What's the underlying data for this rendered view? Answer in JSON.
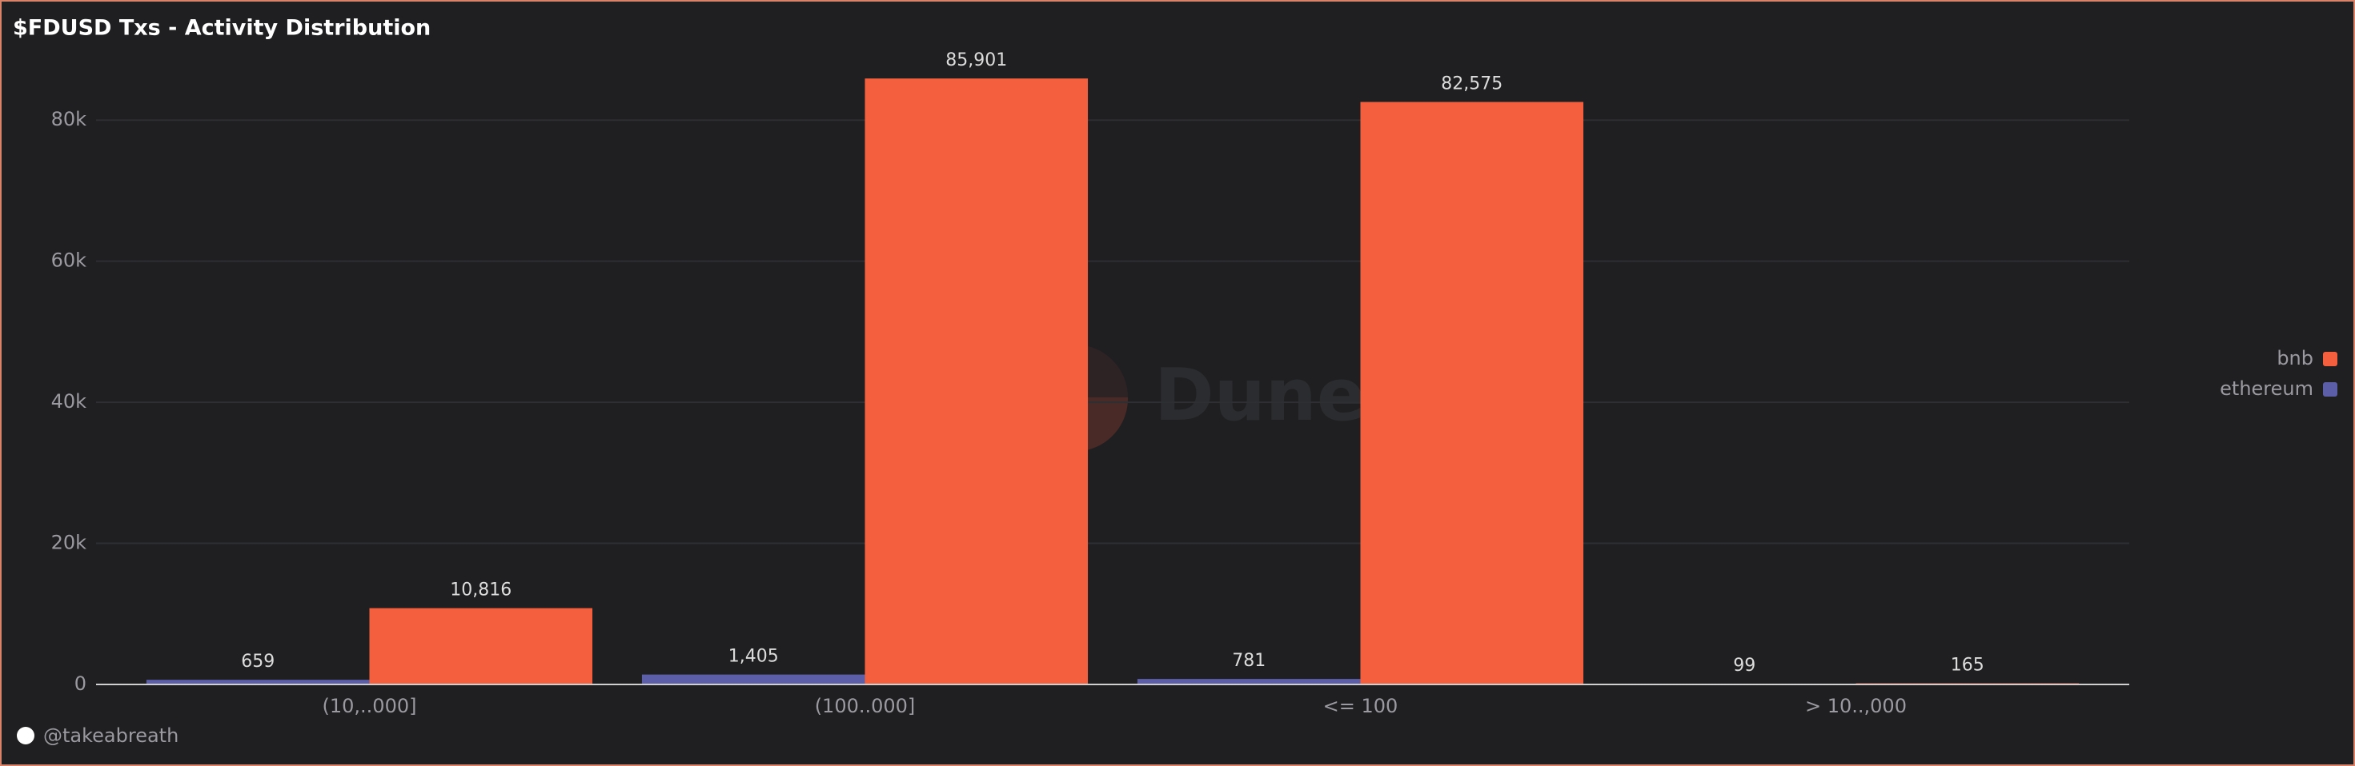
{
  "chart_data": {
    "type": "bar",
    "title": "$FDUSD Txs - Activity Distribution",
    "categories": [
      "(10,..000]",
      "(100..000]",
      "<= 100",
      "> 10..,000"
    ],
    "series": [
      {
        "name": "ethereum",
        "color": "#5c5fa8",
        "values": [
          659,
          1405,
          781,
          99
        ],
        "value_labels": [
          "659",
          "1,405",
          "781",
          "99"
        ]
      },
      {
        "name": "bnb",
        "color": "#f4603e",
        "values": [
          10816,
          85901,
          82575,
          165
        ],
        "value_labels": [
          "10,816",
          "85,901",
          "82,575",
          "165"
        ]
      }
    ],
    "ylim": [
      0,
      90000
    ],
    "yticks": [
      0,
      {
        "value": 20000,
        "label": "20k"
      },
      {
        "value": 40000,
        "label": "40k"
      },
      {
        "value": 60000,
        "label": "60k"
      },
      {
        "value": 80000,
        "label": "80k"
      }
    ],
    "grid": true,
    "legend": "right",
    "watermark": "Dune",
    "author": "@takeabreath"
  }
}
